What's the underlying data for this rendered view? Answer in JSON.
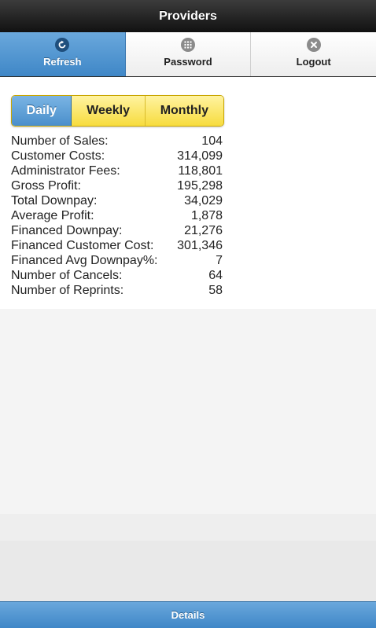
{
  "header": {
    "title": "Providers"
  },
  "navbar": {
    "items": [
      {
        "label": "Refresh",
        "icon": "refresh-icon",
        "active": true
      },
      {
        "label": "Password",
        "icon": "grid-icon",
        "active": false
      },
      {
        "label": "Logout",
        "icon": "close-icon",
        "active": false
      }
    ]
  },
  "period": {
    "options": [
      "Daily",
      "Weekly",
      "Monthly"
    ],
    "selected": "Daily"
  },
  "stats": [
    {
      "label": "Number of Sales:",
      "value": "104"
    },
    {
      "label": "Customer Costs:",
      "value": "314,099"
    },
    {
      "label": "Administrator Fees:",
      "value": "118,801"
    },
    {
      "label": "Gross Profit:",
      "value": "195,298"
    },
    {
      "label": "Total Downpay:",
      "value": "34,029"
    },
    {
      "label": "Average Profit:",
      "value": "1,878"
    },
    {
      "label": "Financed Downpay:",
      "value": "21,276"
    },
    {
      "label": "Financed Customer Cost:",
      "value": "301,346"
    },
    {
      "label": "Financed Avg Downpay%:",
      "value": "7"
    },
    {
      "label": "Number of Cancels:",
      "value": "64"
    },
    {
      "label": "Number of Reprints:",
      "value": "58"
    }
  ],
  "footer": {
    "label": "Details"
  },
  "colors": {
    "accent_blue": "#4a8fcb",
    "segment_yellow": "#f7dc3e",
    "header_dark": "#1a1a1a"
  }
}
